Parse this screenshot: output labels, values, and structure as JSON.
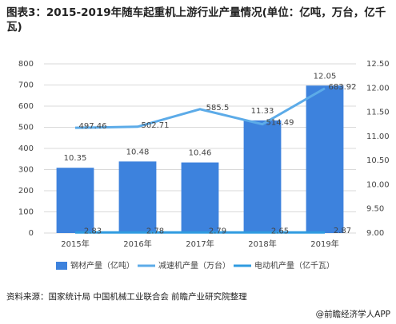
{
  "chart_data": {
    "type": "combo",
    "title": "图表3：2015-2019年随车起重机上游行业产量情况(单位：亿吨，万台，亿千瓦)",
    "categories": [
      "2015年",
      "2016年",
      "2017年",
      "2018年",
      "2019年"
    ],
    "series": [
      {
        "name": "钢材产量（亿吨）",
        "type": "bar",
        "axis": "y2",
        "color": "#3d82dd",
        "values": [
          10.35,
          10.48,
          10.46,
          11.33,
          12.05
        ]
      },
      {
        "name": "减速机产量（万台）",
        "type": "line",
        "color": "#5cabe8",
        "values": [
          497.46,
          502.71,
          585.5,
          514.49,
          683.92
        ]
      },
      {
        "name": "电动机产量（亿千瓦）",
        "type": "line",
        "color": "#2f9be0",
        "values": [
          2.83,
          2.78,
          2.79,
          2.65,
          2.87
        ]
      }
    ],
    "ylim": [
      0,
      800
    ],
    "yticks": [
      0,
      100,
      200,
      300,
      400,
      500,
      600,
      700,
      800
    ],
    "y2lim": [
      9,
      12.5
    ],
    "y2ticks": [
      {
        "value": 9,
        "label": "9.00"
      },
      {
        "value": 9.5,
        "label": "9.50"
      },
      {
        "value": 10,
        "label": "10.00"
      },
      {
        "value": 10.5,
        "label": "10.50"
      },
      {
        "value": 11,
        "label": "11.00"
      },
      {
        "value": 11.5,
        "label": "11.50"
      },
      {
        "value": 12,
        "label": "12.00"
      },
      {
        "value": 12.5,
        "label": "12.50"
      }
    ],
    "grid": true,
    "source": "资料来源：国家统计局 中国机械工业联合会 前瞻产业研究院整理",
    "footer": "@前瞻经济学人APP"
  }
}
